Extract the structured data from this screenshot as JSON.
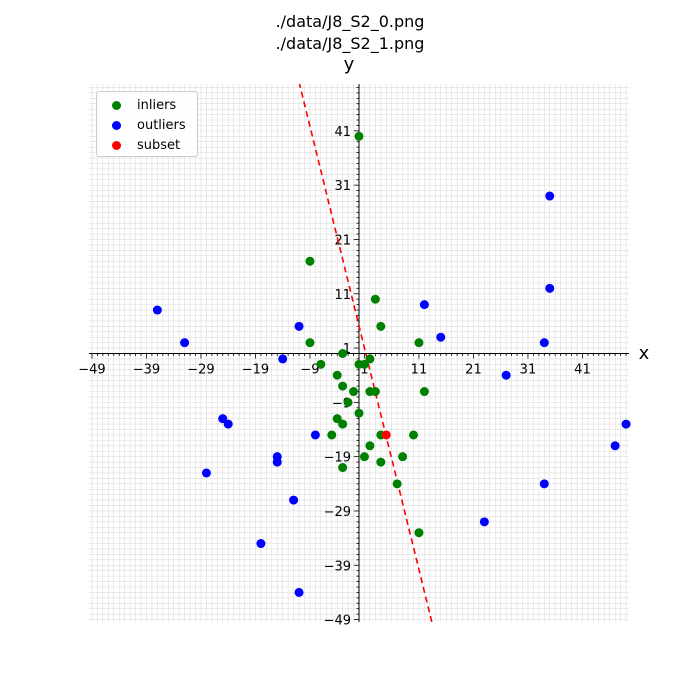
{
  "title_lines": [
    "./data/J8_S2_0.png",
    "./data/J8_S2_1.png"
  ],
  "chart_data": {
    "type": "scatter",
    "xlabel": "x",
    "ylabel": "y",
    "xlim": [
      -49,
      50
    ],
    "ylim": [
      -49,
      50
    ],
    "ticks": [
      -49,
      -39,
      -29,
      -19,
      -9,
      1,
      11,
      21,
      31,
      41
    ],
    "grid": "on (minor, 1-unit spacing)",
    "legend_position": "top-left",
    "series": [
      {
        "name": "inliers",
        "color": "#008000",
        "points": [
          [
            0,
            40
          ],
          [
            -9,
            17
          ],
          [
            3,
            10
          ],
          [
            4,
            5
          ],
          [
            -9,
            2
          ],
          [
            11,
            2
          ],
          [
            -3,
            0
          ],
          [
            -7,
            -2
          ],
          [
            0,
            -2
          ],
          [
            1,
            -2
          ],
          [
            2,
            -1
          ],
          [
            -4,
            -4
          ],
          [
            -3,
            -6
          ],
          [
            -1,
            -7
          ],
          [
            2,
            -7
          ],
          [
            3,
            -7
          ],
          [
            12,
            -7
          ],
          [
            -2,
            -9
          ],
          [
            0,
            -11
          ],
          [
            -4,
            -12
          ],
          [
            -3,
            -13
          ],
          [
            -5,
            -15
          ],
          [
            4,
            -15
          ],
          [
            10,
            -15
          ],
          [
            2,
            -17
          ],
          [
            8,
            -19
          ],
          [
            1,
            -19
          ],
          [
            4,
            -20
          ],
          [
            -3,
            -21
          ],
          [
            7,
            -24
          ],
          [
            11,
            -33
          ]
        ]
      },
      {
        "name": "outliers",
        "color": "#0000ff",
        "points": [
          [
            35,
            29
          ],
          [
            35,
            12
          ],
          [
            12,
            9
          ],
          [
            -37,
            8
          ],
          [
            -11,
            5
          ],
          [
            15,
            3
          ],
          [
            -32,
            2
          ],
          [
            34,
            2
          ],
          [
            -14,
            -1
          ],
          [
            27,
            -4
          ],
          [
            -25,
            -12
          ],
          [
            -24,
            -13
          ],
          [
            49,
            -13
          ],
          [
            -8,
            -15
          ],
          [
            47,
            -17
          ],
          [
            -15,
            -19
          ],
          [
            -15,
            -20
          ],
          [
            -28,
            -22
          ],
          [
            34,
            -24
          ],
          [
            -12,
            -27
          ],
          [
            23,
            -31
          ],
          [
            -18,
            -35
          ],
          [
            -11,
            -44
          ]
        ]
      },
      {
        "name": "subset",
        "color": "#ff0000",
        "points": [
          [
            5,
            -15
          ]
        ]
      }
    ],
    "fit_line": {
      "style": "dashed",
      "color": "#ff0000",
      "points": [
        [
          -11,
          50
        ],
        [
          13.5,
          -50
        ]
      ]
    }
  }
}
